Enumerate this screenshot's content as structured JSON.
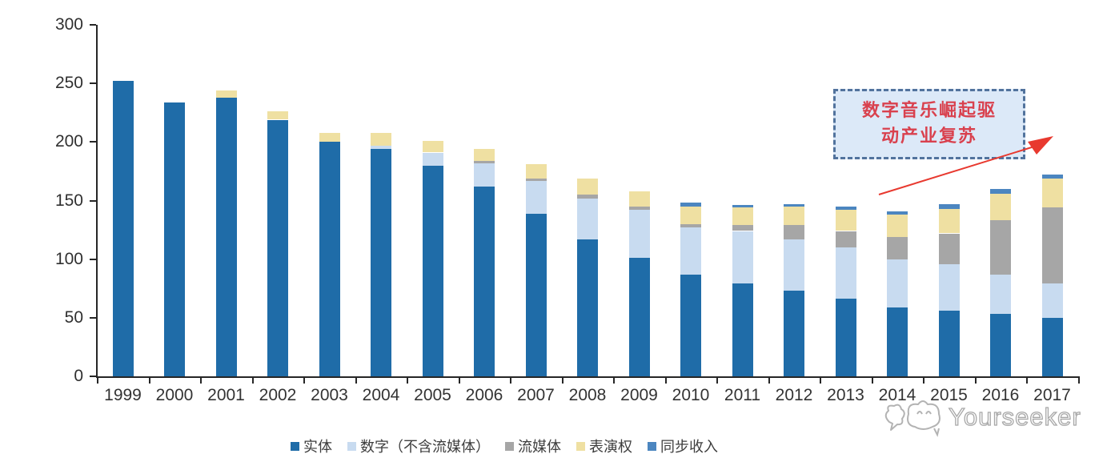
{
  "chart_data": {
    "type": "bar",
    "stacked": true,
    "title": "",
    "xlabel": "",
    "ylabel": "",
    "ylim": [
      0,
      300
    ],
    "yticks": [
      0,
      50,
      100,
      150,
      200,
      250,
      300
    ],
    "grid": false,
    "legend_position": "bottom",
    "categories": [
      "1999",
      "2000",
      "2001",
      "2002",
      "2003",
      "2004",
      "2005",
      "2006",
      "2007",
      "2008",
      "2009",
      "2010",
      "2011",
      "2012",
      "2013",
      "2014",
      "2015",
      "2016",
      "2017"
    ],
    "series": [
      {
        "name": "实体",
        "color": "#1F6CA8",
        "values": [
          252,
          234,
          238,
          219,
          200,
          194,
          180,
          162,
          139,
          117,
          101,
          87,
          79,
          73,
          66,
          59,
          56,
          53,
          50
        ]
      },
      {
        "name": "数字（不含流媒体）",
        "color": "#C8DBF0",
        "values": [
          0,
          0,
          0,
          0,
          0,
          3,
          11,
          20,
          28,
          35,
          41,
          40,
          45,
          44,
          44,
          41,
          40,
          34,
          29
        ]
      },
      {
        "name": "流媒体",
        "color": "#A6A6A6",
        "values": [
          0,
          0,
          0,
          0,
          0,
          0,
          0,
          2,
          2,
          3,
          3,
          3,
          5,
          12,
          14,
          19,
          26,
          46,
          65
        ]
      },
      {
        "name": "表演权",
        "color": "#EFE0A2",
        "values": [
          0,
          0,
          6,
          7,
          8,
          11,
          10,
          10,
          12,
          14,
          13,
          15,
          15,
          16,
          18,
          19,
          21,
          23,
          25
        ]
      },
      {
        "name": "同步收入",
        "color": "#4C86C0",
        "values": [
          0,
          0,
          0,
          0,
          0,
          0,
          0,
          0,
          0,
          0,
          0,
          3,
          2,
          2,
          3,
          3,
          4,
          4,
          3
        ]
      }
    ]
  },
  "annotation": {
    "lines": [
      "数字音乐崛起驱",
      "动产业复苏"
    ],
    "full_text": "数字音乐崛起驱动产业复苏",
    "text_color": "#D9414E",
    "border_color": "#52739D",
    "background_color": "#DCE9F8",
    "arrow_color": "#E8392F"
  },
  "watermark": {
    "text": "Yourseeker"
  },
  "colors": {
    "axis": "#262626",
    "tick_label": "#303030",
    "year_label": "#333333",
    "legend_text": "#3d3d3d",
    "watermark": "#a8a8a8"
  }
}
